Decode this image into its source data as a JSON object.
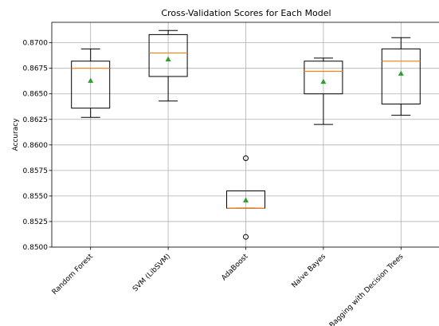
{
  "chart_data": {
    "type": "box",
    "title": "Cross-Validation Scores for Each Model",
    "xlabel": "",
    "ylabel": "Accuracy",
    "ylim": [
      0.85,
      0.872
    ],
    "yticks": [
      "0.8500",
      "0.8525",
      "0.8550",
      "0.8575",
      "0.8600",
      "0.8625",
      "0.8650",
      "0.8675",
      "0.8700"
    ],
    "grid": true,
    "categories": [
      "Random Forest",
      "SVM (LibSVM)",
      "AdaBoost",
      "Naive Bayes",
      "Bagging with Decision Trees"
    ],
    "boxes": [
      {
        "whisker_low": 0.8627,
        "q1": 0.8636,
        "median": 0.8675,
        "q3": 0.8682,
        "whisker_high": 0.8694,
        "mean": 0.8663,
        "outliers": []
      },
      {
        "whisker_low": 0.8643,
        "q1": 0.8667,
        "median": 0.869,
        "q3": 0.8708,
        "whisker_high": 0.8712,
        "mean": 0.8684,
        "outliers": []
      },
      {
        "whisker_low": 0.8538,
        "q1": 0.8538,
        "median": 0.8538,
        "q3": 0.8555,
        "whisker_high": 0.8555,
        "mean": 0.8546,
        "outliers": [
          0.8587,
          0.851
        ]
      },
      {
        "whisker_low": 0.862,
        "q1": 0.865,
        "median": 0.8672,
        "q3": 0.8682,
        "whisker_high": 0.8685,
        "mean": 0.8662,
        "outliers": []
      },
      {
        "whisker_low": 0.8629,
        "q1": 0.864,
        "median": 0.8682,
        "q3": 0.8694,
        "whisker_high": 0.8705,
        "mean": 0.867,
        "outliers": []
      }
    ],
    "colors": {
      "median": "#ff7f0e",
      "mean": "#2ca02c",
      "box": "#000000",
      "grid": "#b0b0b0"
    }
  }
}
